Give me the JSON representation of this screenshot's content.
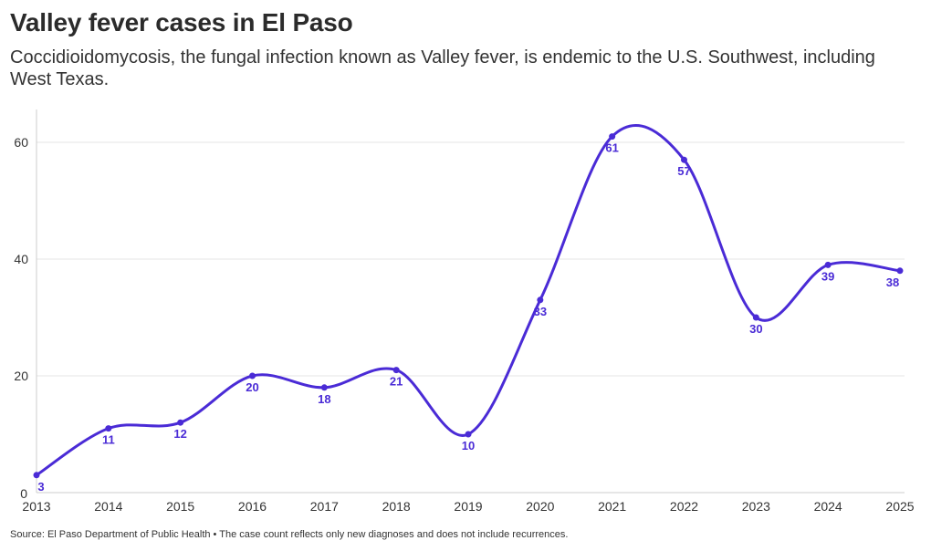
{
  "header": {
    "title": "Valley fever cases in El Paso",
    "subtitle": "Coccidioidomycosis, the fungal infection known as Valley fever, is endemic to the U.S. Southwest, including West Texas."
  },
  "footer": {
    "source": "Source: El Paso Department of Public Health • The case count reflects only new diagnoses and does not include recurrences."
  },
  "colors": {
    "series": "#4a2bd6",
    "grid": "#e6e6e6",
    "axis": "#cccccc"
  },
  "chart_data": {
    "type": "line",
    "title": "Valley fever cases in El Paso",
    "xlabel": "",
    "ylabel": "",
    "x": [
      "2013",
      "2014",
      "2015",
      "2016",
      "2017",
      "2018",
      "2019",
      "2020",
      "2021",
      "2022",
      "2023",
      "2024",
      "2025"
    ],
    "series": [
      {
        "name": "Cases",
        "values": [
          3,
          11,
          12,
          20,
          18,
          21,
          10,
          33,
          61,
          57,
          30,
          39,
          38
        ]
      }
    ],
    "yticks": [
      0,
      20,
      40,
      60
    ],
    "ylim": [
      0,
      66
    ],
    "grid": true,
    "data_labels": true
  }
}
